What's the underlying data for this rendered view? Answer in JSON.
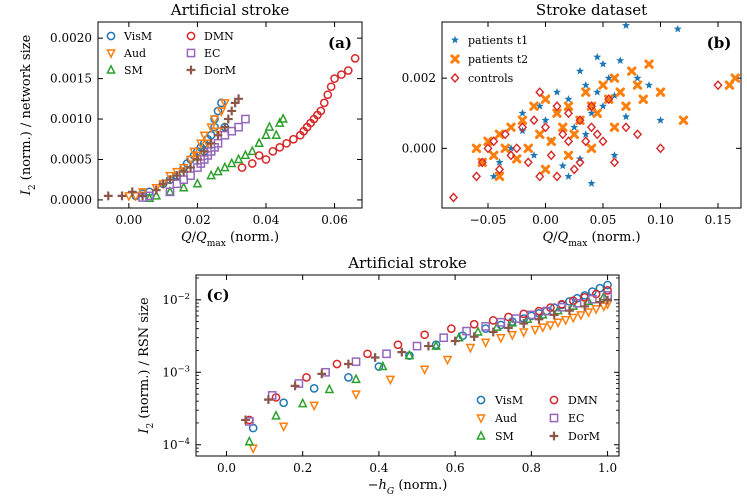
{
  "chart_data": [
    {
      "panel": "a",
      "type": "scatter",
      "title": "Artificial stroke",
      "panel_label": "(a)",
      "xlabel": "Q/Q_max (norm.)",
      "ylabel": "I_2 (norm.) / network size",
      "xlim": [
        -0.009,
        0.068
      ],
      "ylim": [
        -0.0001,
        0.0022
      ],
      "xticks": [
        "0.00",
        "0.02",
        "0.04",
        "0.06"
      ],
      "yticks": [
        "0.0000",
        "0.0005",
        "0.0010",
        "0.0015",
        "0.0020"
      ],
      "legend_loc": "upper-left",
      "series": [
        {
          "name": "VisM",
          "marker": "circle",
          "color": "#1f77b4",
          "x": [
            0.002,
            0.004,
            0.006,
            0.01,
            0.012,
            0.014,
            0.016,
            0.017,
            0.018,
            0.019,
            0.02,
            0.021,
            0.022,
            0.022,
            0.023,
            0.024,
            0.025,
            0.025,
            0.026,
            0.027,
            0.028
          ],
          "y": [
            5e-05,
            8e-05,
            0.0001,
            0.0002,
            0.00025,
            0.0003,
            0.0004,
            0.00045,
            0.0005,
            0.00055,
            0.0006,
            0.00065,
            0.0006,
            0.0007,
            0.00075,
            0.0008,
            0.0009,
            0.001,
            0.0011,
            0.0012,
            0.0009
          ]
        },
        {
          "name": "Aud",
          "marker": "triangle-down",
          "color": "#ff7f0e",
          "x": [
            0.0,
            0.002,
            0.004,
            0.008,
            0.01,
            0.012,
            0.014,
            0.016,
            0.018,
            0.019,
            0.02,
            0.021,
            0.022,
            0.023,
            0.024,
            0.025,
            0.026,
            0.027,
            0.028
          ],
          "y": [
            5e-05,
            5e-05,
            0.0001,
            0.00015,
            0.0002,
            0.0003,
            0.00035,
            0.0004,
            0.0005,
            0.0006,
            0.00055,
            0.0007,
            0.0008,
            0.0007,
            0.0009,
            0.001,
            0.00085,
            0.0011,
            0.0012
          ]
        },
        {
          "name": "SM",
          "marker": "triangle-up",
          "color": "#2ca02c",
          "x": [
            0.006,
            0.008,
            0.012,
            0.016,
            0.02,
            0.024,
            0.026,
            0.028,
            0.03,
            0.032,
            0.034,
            0.036,
            0.038,
            0.04,
            0.041,
            0.043,
            0.044,
            0.045
          ],
          "y": [
            2e-05,
            5e-05,
            0.0001,
            0.00015,
            0.0002,
            0.0003,
            0.00035,
            0.0004,
            0.00045,
            0.0005,
            0.00055,
            0.0006,
            0.0007,
            0.0008,
            0.0009,
            0.0008,
            0.00095,
            0.001
          ]
        },
        {
          "name": "DMN",
          "marker": "circle",
          "color": "#d62728",
          "x": [
            0.033,
            0.036,
            0.038,
            0.04,
            0.042,
            0.044,
            0.046,
            0.048,
            0.05,
            0.051,
            0.052,
            0.053,
            0.054,
            0.055,
            0.056,
            0.057,
            0.058,
            0.059,
            0.06,
            0.062,
            0.064,
            0.066
          ],
          "y": [
            0.0004,
            0.00045,
            0.00055,
            0.0005,
            0.0006,
            0.00065,
            0.0007,
            0.00075,
            0.0008,
            0.00085,
            0.0009,
            0.00095,
            0.001,
            0.00105,
            0.0011,
            0.0012,
            0.0013,
            0.0014,
            0.0015,
            0.00155,
            0.0016,
            0.00175
          ]
        },
        {
          "name": "EC",
          "marker": "square",
          "color": "#9467bd",
          "x": [
            0.004,
            0.006,
            0.012,
            0.014,
            0.016,
            0.018,
            0.02,
            0.021,
            0.022,
            0.023,
            0.024,
            0.025,
            0.026,
            0.028,
            0.03,
            0.032,
            0.034
          ],
          "y": [
            3e-05,
            5e-05,
            0.0001,
            0.0002,
            0.00025,
            0.0003,
            0.0004,
            0.00045,
            0.0005,
            0.00055,
            0.0006,
            0.00065,
            0.0007,
            0.0008,
            0.00085,
            0.0009,
            0.001
          ]
        },
        {
          "name": "DorM",
          "marker": "plus",
          "color": "#8c564b",
          "x": [
            -0.006,
            -0.002,
            0.001,
            0.004,
            0.008,
            0.01,
            0.012,
            0.014,
            0.016,
            0.018,
            0.02,
            0.022,
            0.024,
            0.026,
            0.028,
            0.029,
            0.03,
            0.031,
            0.032
          ],
          "y": [
            5e-05,
            5e-05,
            0.0001,
            5e-05,
            0.00012,
            0.0002,
            0.00025,
            0.0003,
            0.00035,
            0.0004,
            0.0005,
            0.0006,
            0.0007,
            0.0008,
            0.0009,
            0.001,
            0.0011,
            0.0012,
            0.00125
          ]
        }
      ]
    },
    {
      "panel": "b",
      "type": "scatter",
      "title": "Stroke dataset",
      "panel_label": "(b)",
      "xlabel": "Q/Q_max (norm.)",
      "ylabel": "",
      "xlim": [
        -0.09,
        0.17
      ],
      "ylim": [
        -0.0017,
        0.0036
      ],
      "xticks": [
        "−0.05",
        "0.00",
        "0.05",
        "0.10",
        "0.15"
      ],
      "yticks": [
        "0.000",
        "0.002"
      ],
      "legend_loc": "upper-left",
      "series": [
        {
          "name": "patients t1",
          "marker": "star",
          "color": "#1f77b4",
          "x": [
            -0.045,
            -0.04,
            -0.03,
            -0.02,
            -0.01,
            -0.005,
            0.0,
            0.005,
            0.01,
            0.015,
            0.02,
            0.025,
            0.03,
            0.035,
            0.04,
            0.045,
            0.05,
            0.055,
            0.06,
            0.065,
            0.07,
            0.08,
            0.09,
            0.1,
            0.115,
            0.02,
            0.03,
            0.04,
            0.05,
            0.06,
            0.01,
            -0.02,
            0.035,
            0.07,
            0.045
          ],
          "y": [
            -0.0008,
            -0.0004,
            0.0,
            0.0005,
            -0.0002,
            0.0012,
            0.0008,
            0.0002,
            0.001,
            -0.0005,
            0.0014,
            0.0006,
            -0.0003,
            0.0018,
            0.001,
            0.0016,
            0.0012,
            0.002,
            0.0015,
            0.0025,
            0.0035,
            0.002,
            0.0018,
            0.0008,
            0.0034,
            -0.0008,
            0.0022,
            -0.001,
            0.0024,
            -0.0002,
            0.0016,
            0.001,
            0.0004,
            0.0009,
            0.0026
          ]
        },
        {
          "name": "patients t2",
          "marker": "cross",
          "color": "#ff7f0e",
          "x": [
            -0.06,
            -0.055,
            -0.05,
            -0.045,
            -0.04,
            -0.035,
            -0.03,
            -0.025,
            -0.02,
            -0.015,
            -0.01,
            -0.005,
            0.0,
            0.005,
            0.01,
            0.015,
            0.02,
            0.025,
            0.03,
            0.035,
            0.04,
            0.045,
            0.05,
            0.055,
            0.06,
            0.065,
            0.07,
            0.075,
            0.08,
            0.085,
            0.09,
            0.1,
            0.12,
            0.16,
            0.165,
            -0.04,
            0.0,
            0.02,
            0.04,
            0.06
          ],
          "y": [
            0.0,
            -0.0004,
            0.0002,
            -0.0002,
            0.0004,
            0.0,
            0.0006,
            -0.0003,
            0.0008,
            0.0,
            0.0012,
            0.0004,
            0.0014,
            0.0002,
            0.001,
            0.0006,
            0.0012,
            0.0004,
            0.0008,
            0.0016,
            0.0012,
            0.001,
            0.0018,
            0.0014,
            0.002,
            0.0016,
            0.0012,
            0.0022,
            0.0018,
            0.0014,
            0.0024,
            0.0016,
            0.0008,
            0.0018,
            0.002,
            -0.0008,
            -0.0006,
            -0.0002,
            0.0,
            0.0006
          ]
        },
        {
          "name": "controls",
          "marker": "diamond",
          "color": "#d62728",
          "x": [
            -0.08,
            -0.06,
            -0.055,
            -0.05,
            -0.045,
            -0.04,
            -0.035,
            -0.03,
            -0.025,
            -0.02,
            -0.015,
            -0.01,
            -0.005,
            0.0,
            0.005,
            0.01,
            0.015,
            0.02,
            0.025,
            0.03,
            0.035,
            0.04,
            0.045,
            0.05,
            0.055,
            0.06,
            0.07,
            0.08,
            0.1,
            0.15,
            -0.005,
            0.01,
            0.02,
            0.03,
            0.04
          ],
          "y": [
            -0.0014,
            -0.0008,
            -0.0004,
            0.0,
            0.0002,
            -0.0006,
            0.0004,
            -0.0002,
            0.0,
            0.0006,
            -0.0004,
            0.0008,
            0.0016,
            0.0006,
            -0.0002,
            0.0012,
            0.0004,
            0.001,
            -0.0006,
            0.0008,
            0.0002,
            0.0006,
            0.0004,
            0.0002,
            0.0014,
            -0.0004,
            0.0006,
            0.0004,
            0.0,
            0.0018,
            -0.0008,
            -0.0008,
            0.0002,
            -0.0004,
            0.0012
          ]
        }
      ]
    },
    {
      "panel": "c",
      "type": "scatter",
      "title": "Artificial stroke",
      "panel_label": "(c)",
      "xlabel": "−h_G (norm.)",
      "ylabel": "I_2 (norm.) / RSN size",
      "yscale": "log",
      "xlim": [
        -0.08,
        1.03
      ],
      "ylim": [
        7e-05,
        0.022
      ],
      "xticks": [
        "0.0",
        "0.2",
        "0.4",
        "0.6",
        "0.8",
        "1.0"
      ],
      "yticks": [
        "10^-4",
        "10^-3",
        "10^-2"
      ],
      "legend_loc": "lower-right",
      "series": [
        {
          "name": "VisM",
          "marker": "circle",
          "color": "#1f77b4",
          "x": [
            0.07,
            0.15,
            0.23,
            0.32,
            0.4,
            0.48,
            0.55,
            0.62,
            0.68,
            0.72,
            0.75,
            0.78,
            0.8,
            0.82,
            0.84,
            0.86,
            0.88,
            0.9,
            0.92,
            0.94,
            0.96,
            0.98,
            1.0
          ],
          "y": [
            0.00017,
            0.00038,
            0.0006,
            0.00085,
            0.0012,
            0.0017,
            0.0024,
            0.0032,
            0.004,
            0.0045,
            0.005,
            0.0055,
            0.006,
            0.0065,
            0.007,
            0.0078,
            0.0085,
            0.0095,
            0.0105,
            0.0115,
            0.013,
            0.0145,
            0.016
          ]
        },
        {
          "name": "Aud",
          "marker": "triangle-down",
          "color": "#ff7f0e",
          "x": [
            0.07,
            0.15,
            0.23,
            0.34,
            0.43,
            0.52,
            0.58,
            0.64,
            0.68,
            0.72,
            0.75,
            0.78,
            0.81,
            0.83,
            0.85,
            0.87,
            0.89,
            0.91,
            0.93,
            0.95,
            0.97,
            0.99,
            1.0
          ],
          "y": [
            9e-05,
            0.00018,
            0.00035,
            0.0005,
            0.0008,
            0.0011,
            0.0015,
            0.0022,
            0.0026,
            0.003,
            0.0033,
            0.0036,
            0.0039,
            0.0042,
            0.0045,
            0.0049,
            0.0053,
            0.0057,
            0.0062,
            0.0068,
            0.0075,
            0.0082,
            0.0088
          ]
        },
        {
          "name": "SM",
          "marker": "triangle-up",
          "color": "#2ca02c",
          "x": [
            0.06,
            0.13,
            0.2,
            0.27,
            0.34,
            0.41,
            0.48,
            0.55,
            0.61,
            0.66,
            0.71,
            0.75,
            0.79,
            0.83,
            0.87,
            0.91,
            0.95,
            0.99
          ],
          "y": [
            0.00011,
            0.00025,
            0.00037,
            0.00058,
            0.0008,
            0.0012,
            0.0017,
            0.0023,
            0.003,
            0.0036,
            0.0042,
            0.0048,
            0.0054,
            0.0062,
            0.0071,
            0.0082,
            0.0095,
            0.011
          ]
        },
        {
          "name": "DMN",
          "marker": "circle",
          "color": "#d62728",
          "x": [
            0.06,
            0.13,
            0.21,
            0.29,
            0.37,
            0.45,
            0.52,
            0.59,
            0.65,
            0.7,
            0.74,
            0.78,
            0.82,
            0.85,
            0.88,
            0.91,
            0.94,
            0.97,
            1.0
          ],
          "y": [
            0.00022,
            0.00045,
            0.00085,
            0.0013,
            0.0018,
            0.0024,
            0.0033,
            0.004,
            0.0046,
            0.0052,
            0.0058,
            0.0064,
            0.007,
            0.0078,
            0.0087,
            0.0097,
            0.0108,
            0.012,
            0.0135
          ]
        },
        {
          "name": "EC",
          "marker": "square",
          "color": "#9467bd",
          "x": [
            0.06,
            0.12,
            0.19,
            0.26,
            0.34,
            0.42,
            0.5,
            0.57,
            0.63,
            0.68,
            0.72,
            0.76,
            0.8,
            0.84,
            0.88,
            0.92,
            0.96,
            1.0
          ],
          "y": [
            0.00021,
            0.00048,
            0.0007,
            0.001,
            0.0014,
            0.0018,
            0.0023,
            0.003,
            0.0037,
            0.0043,
            0.0049,
            0.0055,
            0.0062,
            0.007,
            0.0079,
            0.009,
            0.0102,
            0.0115
          ]
        },
        {
          "name": "DorM",
          "marker": "plus",
          "color": "#8c564b",
          "x": [
            0.05,
            0.11,
            0.18,
            0.25,
            0.32,
            0.39,
            0.46,
            0.53,
            0.6,
            0.65,
            0.7,
            0.74,
            0.78,
            0.82,
            0.86,
            0.9,
            0.94,
            0.98,
            1.0
          ],
          "y": [
            0.00022,
            0.00042,
            0.00065,
            0.00095,
            0.0013,
            0.0016,
            0.0019,
            0.0023,
            0.0027,
            0.0031,
            0.0036,
            0.0041,
            0.0047,
            0.0054,
            0.0062,
            0.0071,
            0.0081,
            0.0093,
            0.0099
          ]
        }
      ]
    }
  ]
}
